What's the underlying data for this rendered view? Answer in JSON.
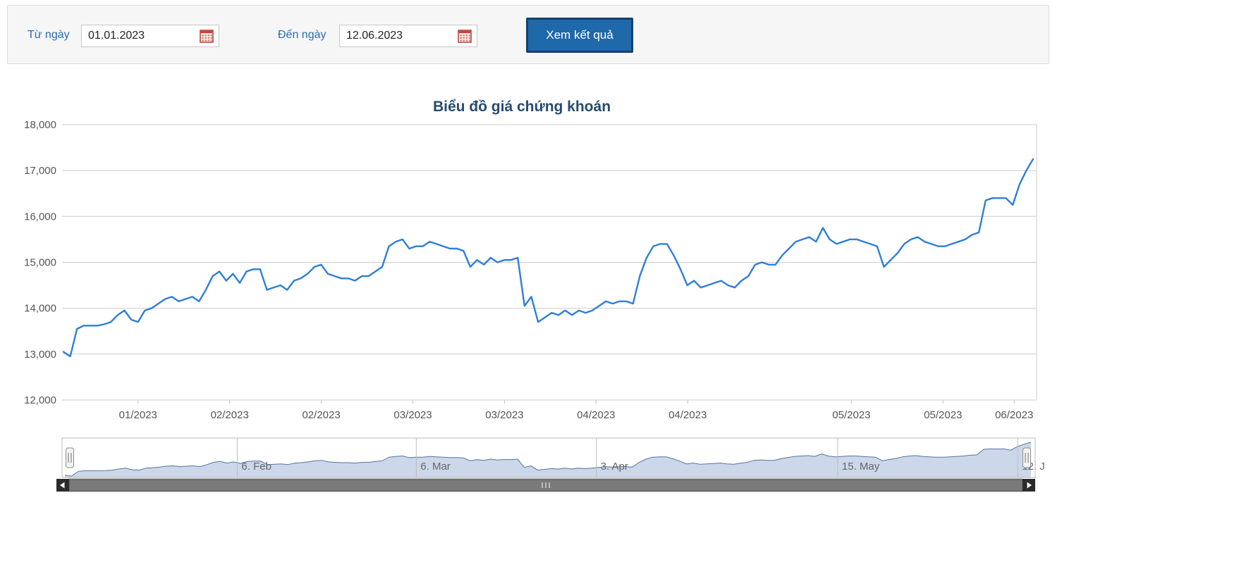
{
  "filter": {
    "from_label": "Từ ngày",
    "from_value": "01.01.2023",
    "to_label": "Đến ngày",
    "to_value": "12.06.2023",
    "submit_label": "Xem kết quả"
  },
  "icons": {
    "calendar": "calendar-icon",
    "navigator_handles": "navigator-handle",
    "scrollbar_left": "left-arrow-icon",
    "scrollbar_right": "right-arrow-icon",
    "scrollbar_grip": "grip-icon"
  },
  "chart_data": {
    "type": "line",
    "title": "Biểu đồ giá chứng khoán",
    "xlabel": "",
    "ylabel": "",
    "ylim": [
      12000,
      18000
    ],
    "grid": true,
    "legend": false,
    "yticks": [
      12000,
      13000,
      14000,
      15000,
      16000,
      17000,
      18000
    ],
    "xticks": [
      {
        "label": "01/2023",
        "pos": 0.078
      },
      {
        "label": "02/2023",
        "pos": 0.172
      },
      {
        "label": "02/2023",
        "pos": 0.266
      },
      {
        "label": "03/2023",
        "pos": 0.36
      },
      {
        "label": "03/2023",
        "pos": 0.454
      },
      {
        "label": "04/2023",
        "pos": 0.548
      },
      {
        "label": "04/2023",
        "pos": 0.642
      },
      {
        "label": "05/2023",
        "pos": 0.81
      },
      {
        "label": "05/2023",
        "pos": 0.904
      },
      {
        "label": "06/2023",
        "pos": 0.977
      }
    ],
    "navigator_ticks": [
      {
        "label": "6. Feb",
        "pos": 0.18
      },
      {
        "label": "6. Mar",
        "pos": 0.364
      },
      {
        "label": "3. Apr",
        "pos": 0.549
      },
      {
        "label": "15. May",
        "pos": 0.797
      },
      {
        "label": "12. J",
        "pos": 0.982
      }
    ],
    "values": [
      13050,
      12950,
      13550,
      13620,
      13620,
      13620,
      13650,
      13700,
      13850,
      13950,
      13750,
      13700,
      13950,
      14000,
      14100,
      14200,
      14250,
      14150,
      14200,
      14250,
      14150,
      14400,
      14700,
      14800,
      14600,
      14750,
      14550,
      14800,
      14850,
      14850,
      14400,
      14450,
      14500,
      14400,
      14600,
      14650,
      14750,
      14900,
      14950,
      14750,
      14700,
      14650,
      14650,
      14600,
      14700,
      14700,
      14800,
      14900,
      15350,
      15450,
      15500,
      15300,
      15350,
      15350,
      15450,
      15400,
      15350,
      15300,
      15300,
      15250,
      14900,
      15050,
      14950,
      15100,
      15000,
      15050,
      15050,
      15100,
      14050,
      14250,
      13700,
      13800,
      13900,
      13850,
      13950,
      13850,
      13950,
      13900,
      13950,
      14050,
      14150,
      14100,
      14150,
      14150,
      14100,
      14700,
      15100,
      15350,
      15400,
      15400,
      15150,
      14850,
      14500,
      14600,
      14450,
      14500,
      14550,
      14600,
      14500,
      14450,
      14600,
      14700,
      14950,
      15000,
      14950,
      14950,
      15150,
      15300,
      15450,
      15500,
      15550,
      15450,
      15750,
      15500,
      15400,
      15450,
      15500,
      15500,
      15450,
      15400,
      15350,
      14900,
      15050,
      15200,
      15400,
      15500,
      15550,
      15450,
      15400,
      15350,
      15350,
      15400,
      15450,
      15500,
      15600,
      15650,
      16350,
      16400,
      16400,
      16400,
      16250,
      16700,
      17000,
      17250
    ],
    "colors": {
      "line": "#2f7ed8",
      "nav_fill": "#ccd7e9",
      "nav_line": "#54749e",
      "grid": "#cccccc",
      "axis_label": "#555555",
      "title": "#274b6d"
    }
  }
}
